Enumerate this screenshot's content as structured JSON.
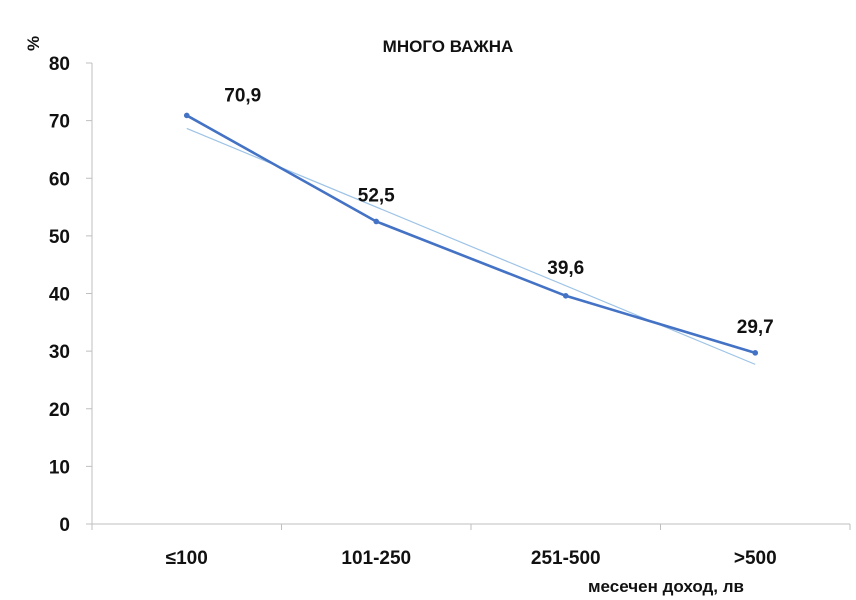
{
  "chart_data": {
    "type": "line",
    "title": "МНОГО ВАЖНА",
    "ylabel": "%",
    "xlabel": "месечен доход, лв",
    "categories": [
      "≤100",
      "101-250",
      "251-500",
      ">500"
    ],
    "series": [
      {
        "values": [
          70.9,
          52.5,
          39.6,
          29.7
        ],
        "data_labels": [
          "70,9",
          "52,5",
          "39,6",
          "29,7"
        ],
        "color": "#4472C4"
      }
    ],
    "trendline": {
      "type": "linear",
      "color": "#9DC3E6"
    },
    "ylim": [
      0,
      80
    ],
    "yticks": [
      0,
      10,
      20,
      30,
      40,
      50,
      60,
      70,
      80
    ],
    "grid": false,
    "legend": "none"
  }
}
